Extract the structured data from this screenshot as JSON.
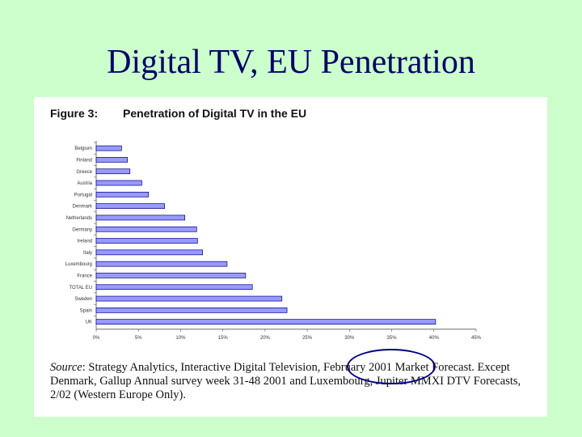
{
  "slide": {
    "title": "Digital TV, EU Penetration"
  },
  "figure": {
    "label": "Figure 3:",
    "title": "Penetration of Digital TV in the EU"
  },
  "source": {
    "lead": "Source",
    "text": ": Strategy Analytics, Interactive Digital Television, February 2001 Market Forecast. Except Denmark, Gallup Annual survey week 31-48 2001 and Luxembourg, Jupiter MMXI DTV Forecasts, 2/02 (Western Europe Only)."
  },
  "colors": {
    "bar_fill": "#9999ff",
    "bar_stroke": "#000080",
    "highlight": "#000080",
    "background": "#ccffcc"
  },
  "chart_data": {
    "type": "bar",
    "orientation": "horizontal",
    "categories": [
      "Belgium",
      "Finland",
      "Greece",
      "Austria",
      "Portugal",
      "Denmark",
      "Netherlands",
      "Germany",
      "Ireland",
      "Italy",
      "Luxembourg",
      "France",
      "TOTAL EU",
      "Sweden",
      "Spain",
      "UK"
    ],
    "values": [
      3.0,
      3.7,
      4.0,
      5.4,
      6.2,
      8.1,
      10.5,
      11.9,
      12.0,
      12.6,
      15.5,
      17.7,
      18.5,
      22.0,
      22.6,
      40.2
    ],
    "xlim": [
      0,
      45
    ],
    "xticks": [
      "0%",
      "5%",
      "10%",
      "15%",
      "20%",
      "25%",
      "30%",
      "35%",
      "40%",
      "45%"
    ],
    "grid": false,
    "legend": "none"
  }
}
